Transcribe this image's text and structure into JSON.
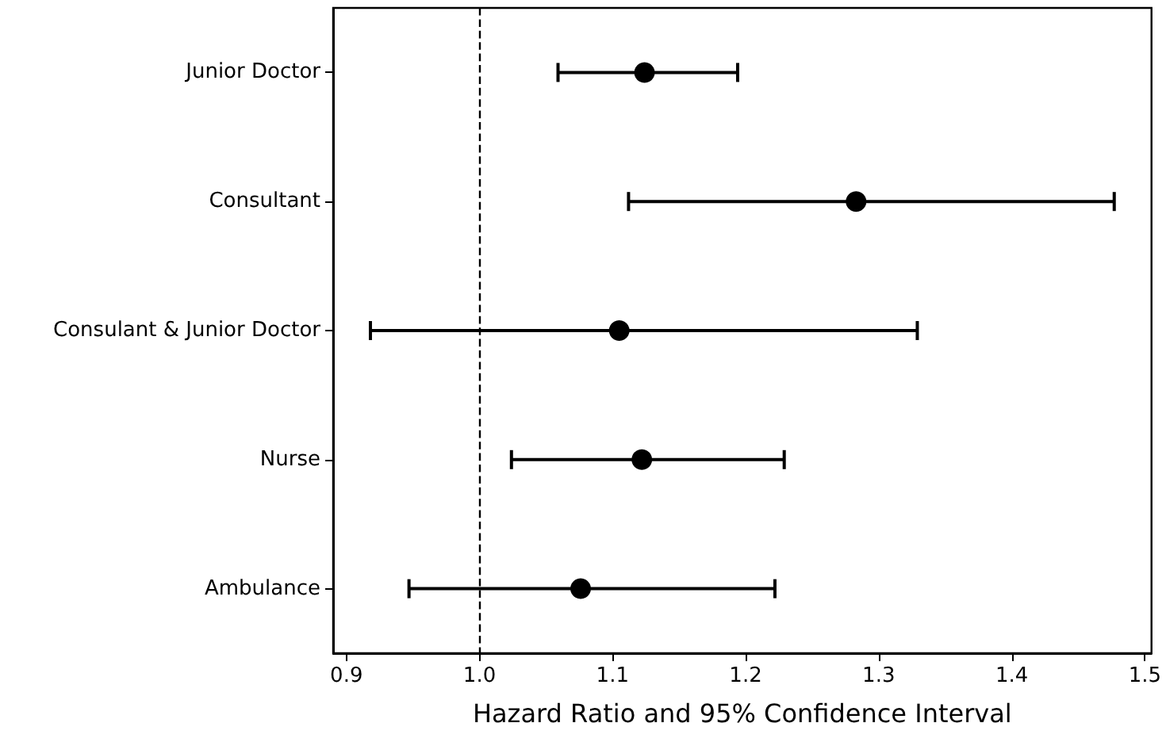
{
  "chart_data": {
    "type": "scatter",
    "orientation": "horizontal",
    "xlabel": "Hazard Ratio and 95% Confidence Interval",
    "categories": [
      "Junior Doctor",
      "Consultant",
      "Consulant & Junior Doctor",
      "Nurse",
      "Ambulance"
    ],
    "values": [
      1.124,
      1.283,
      1.105,
      1.122,
      1.076
    ],
    "errors": [
      [
        1.059,
        1.194
      ],
      [
        1.112,
        1.477
      ],
      [
        0.918,
        1.329
      ],
      [
        1.024,
        1.229
      ],
      [
        0.947,
        1.222
      ]
    ],
    "color": "#000000",
    "marker": "circle",
    "xlim": [
      0.89,
      1.505
    ],
    "xticks": [
      0.9,
      {
        "value": 1,
        "label": "1.0"
      },
      1.1,
      1.2,
      1.3,
      1.4,
      1.5
    ],
    "ref_lines": [
      {
        "axis": "x",
        "value": 1.0,
        "line_style": "dashed",
        "color": "#000000"
      }
    ],
    "grid": false
  }
}
